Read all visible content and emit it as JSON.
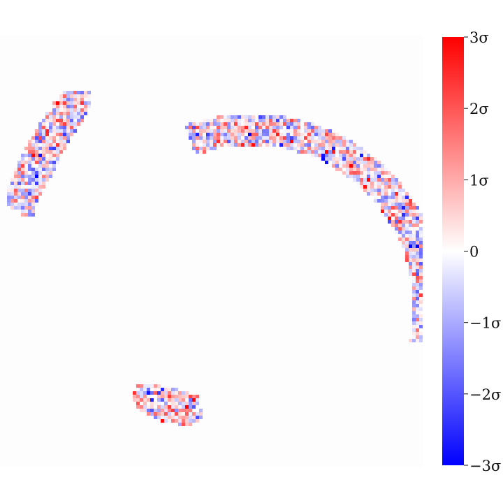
{
  "chart_data": {
    "type": "heatmap",
    "title": "",
    "xlabel": "",
    "ylabel": "",
    "grid": false,
    "axes_visible": false,
    "colormap": [
      "#0000ff",
      "#ffffff",
      "#ff0000"
    ],
    "background_value": 0,
    "masked_regions": [
      {
        "name": "upper-left-arc-segment"
      },
      {
        "name": "right-arc-segment"
      },
      {
        "name": "bottom-arc-segment"
      }
    ],
    "colorbar": {
      "range": [
        -3,
        3
      ],
      "unit": "sigma",
      "ticks": [
        {
          "value": 3,
          "label": "3σ"
        },
        {
          "value": 2,
          "label": "2σ"
        },
        {
          "value": 1,
          "label": "1σ"
        },
        {
          "value": 0,
          "label": "0"
        },
        {
          "value": -1,
          "label": "−1σ"
        },
        {
          "value": -2,
          "label": "−2σ"
        },
        {
          "value": -3,
          "label": "−3σ"
        }
      ]
    }
  }
}
